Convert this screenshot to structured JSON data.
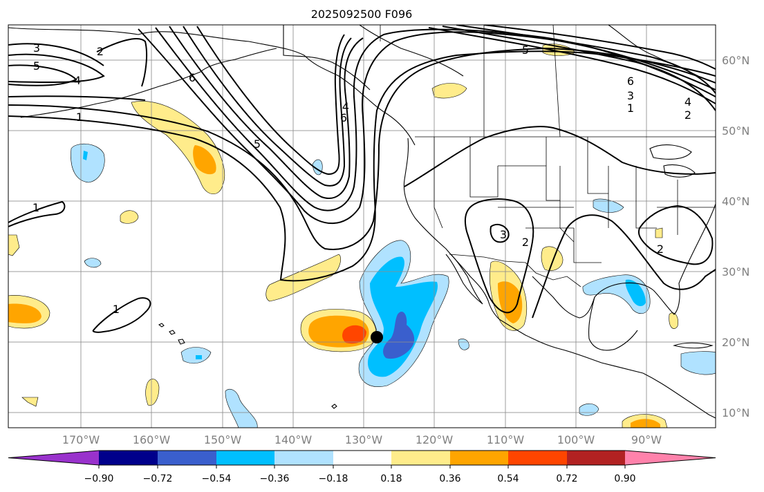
{
  "title": "2025092500 F096",
  "map": {
    "lon_labels": [
      "170°W",
      "160°W",
      "150°W",
      "140°W",
      "130°W",
      "120°W",
      "110°W",
      "100°W",
      "90°W"
    ],
    "lat_labels": [
      "60°N",
      "50°N",
      "40°N",
      "30°N",
      "20°N",
      "10°N"
    ]
  },
  "colorbar": {
    "ticks": [
      "−0.90",
      "−0.72",
      "−0.54",
      "−0.36",
      "−0.18",
      "0.18",
      "0.36",
      "0.54",
      "0.72",
      "0.90"
    ],
    "levels": [
      -0.9,
      -0.72,
      -0.54,
      -0.36,
      -0.18,
      0.18,
      0.36,
      0.54,
      0.72,
      0.9
    ],
    "colors": [
      "#9932CC",
      "#00008B",
      "#3A5FCD",
      "#00BFFF",
      "#B0E2FF",
      "#FFFFFF",
      "#FFEC8B",
      "#FFA500",
      "#FF4500",
      "#B22222",
      "#FF82AB"
    ]
  },
  "contour_labels": {
    "nw_3": "3",
    "nw_2": "2",
    "nw_5": "5",
    "nw_4": "4",
    "w_1": "1",
    "trough_6": "6",
    "trough_5": "5",
    "trough_4": "4",
    "trough_6b": "6",
    "mid_1": "1",
    "sub_1": "1",
    "ne_5": "5",
    "ne_6": "6",
    "ne_3": "3",
    "ne_4": "4",
    "ne_1": "1",
    "ne_2": "2",
    "sw_3": "3",
    "sw_2": "2",
    "se_2": "2"
  },
  "colors": {
    "neg_light": "#B0E2FF",
    "neg_mid": "#00BFFF",
    "neg_dark": "#3A5FCD",
    "pos_light": "#FFEC8B",
    "pos_mid": "#FFA500",
    "pos_dark": "#FF4500"
  }
}
